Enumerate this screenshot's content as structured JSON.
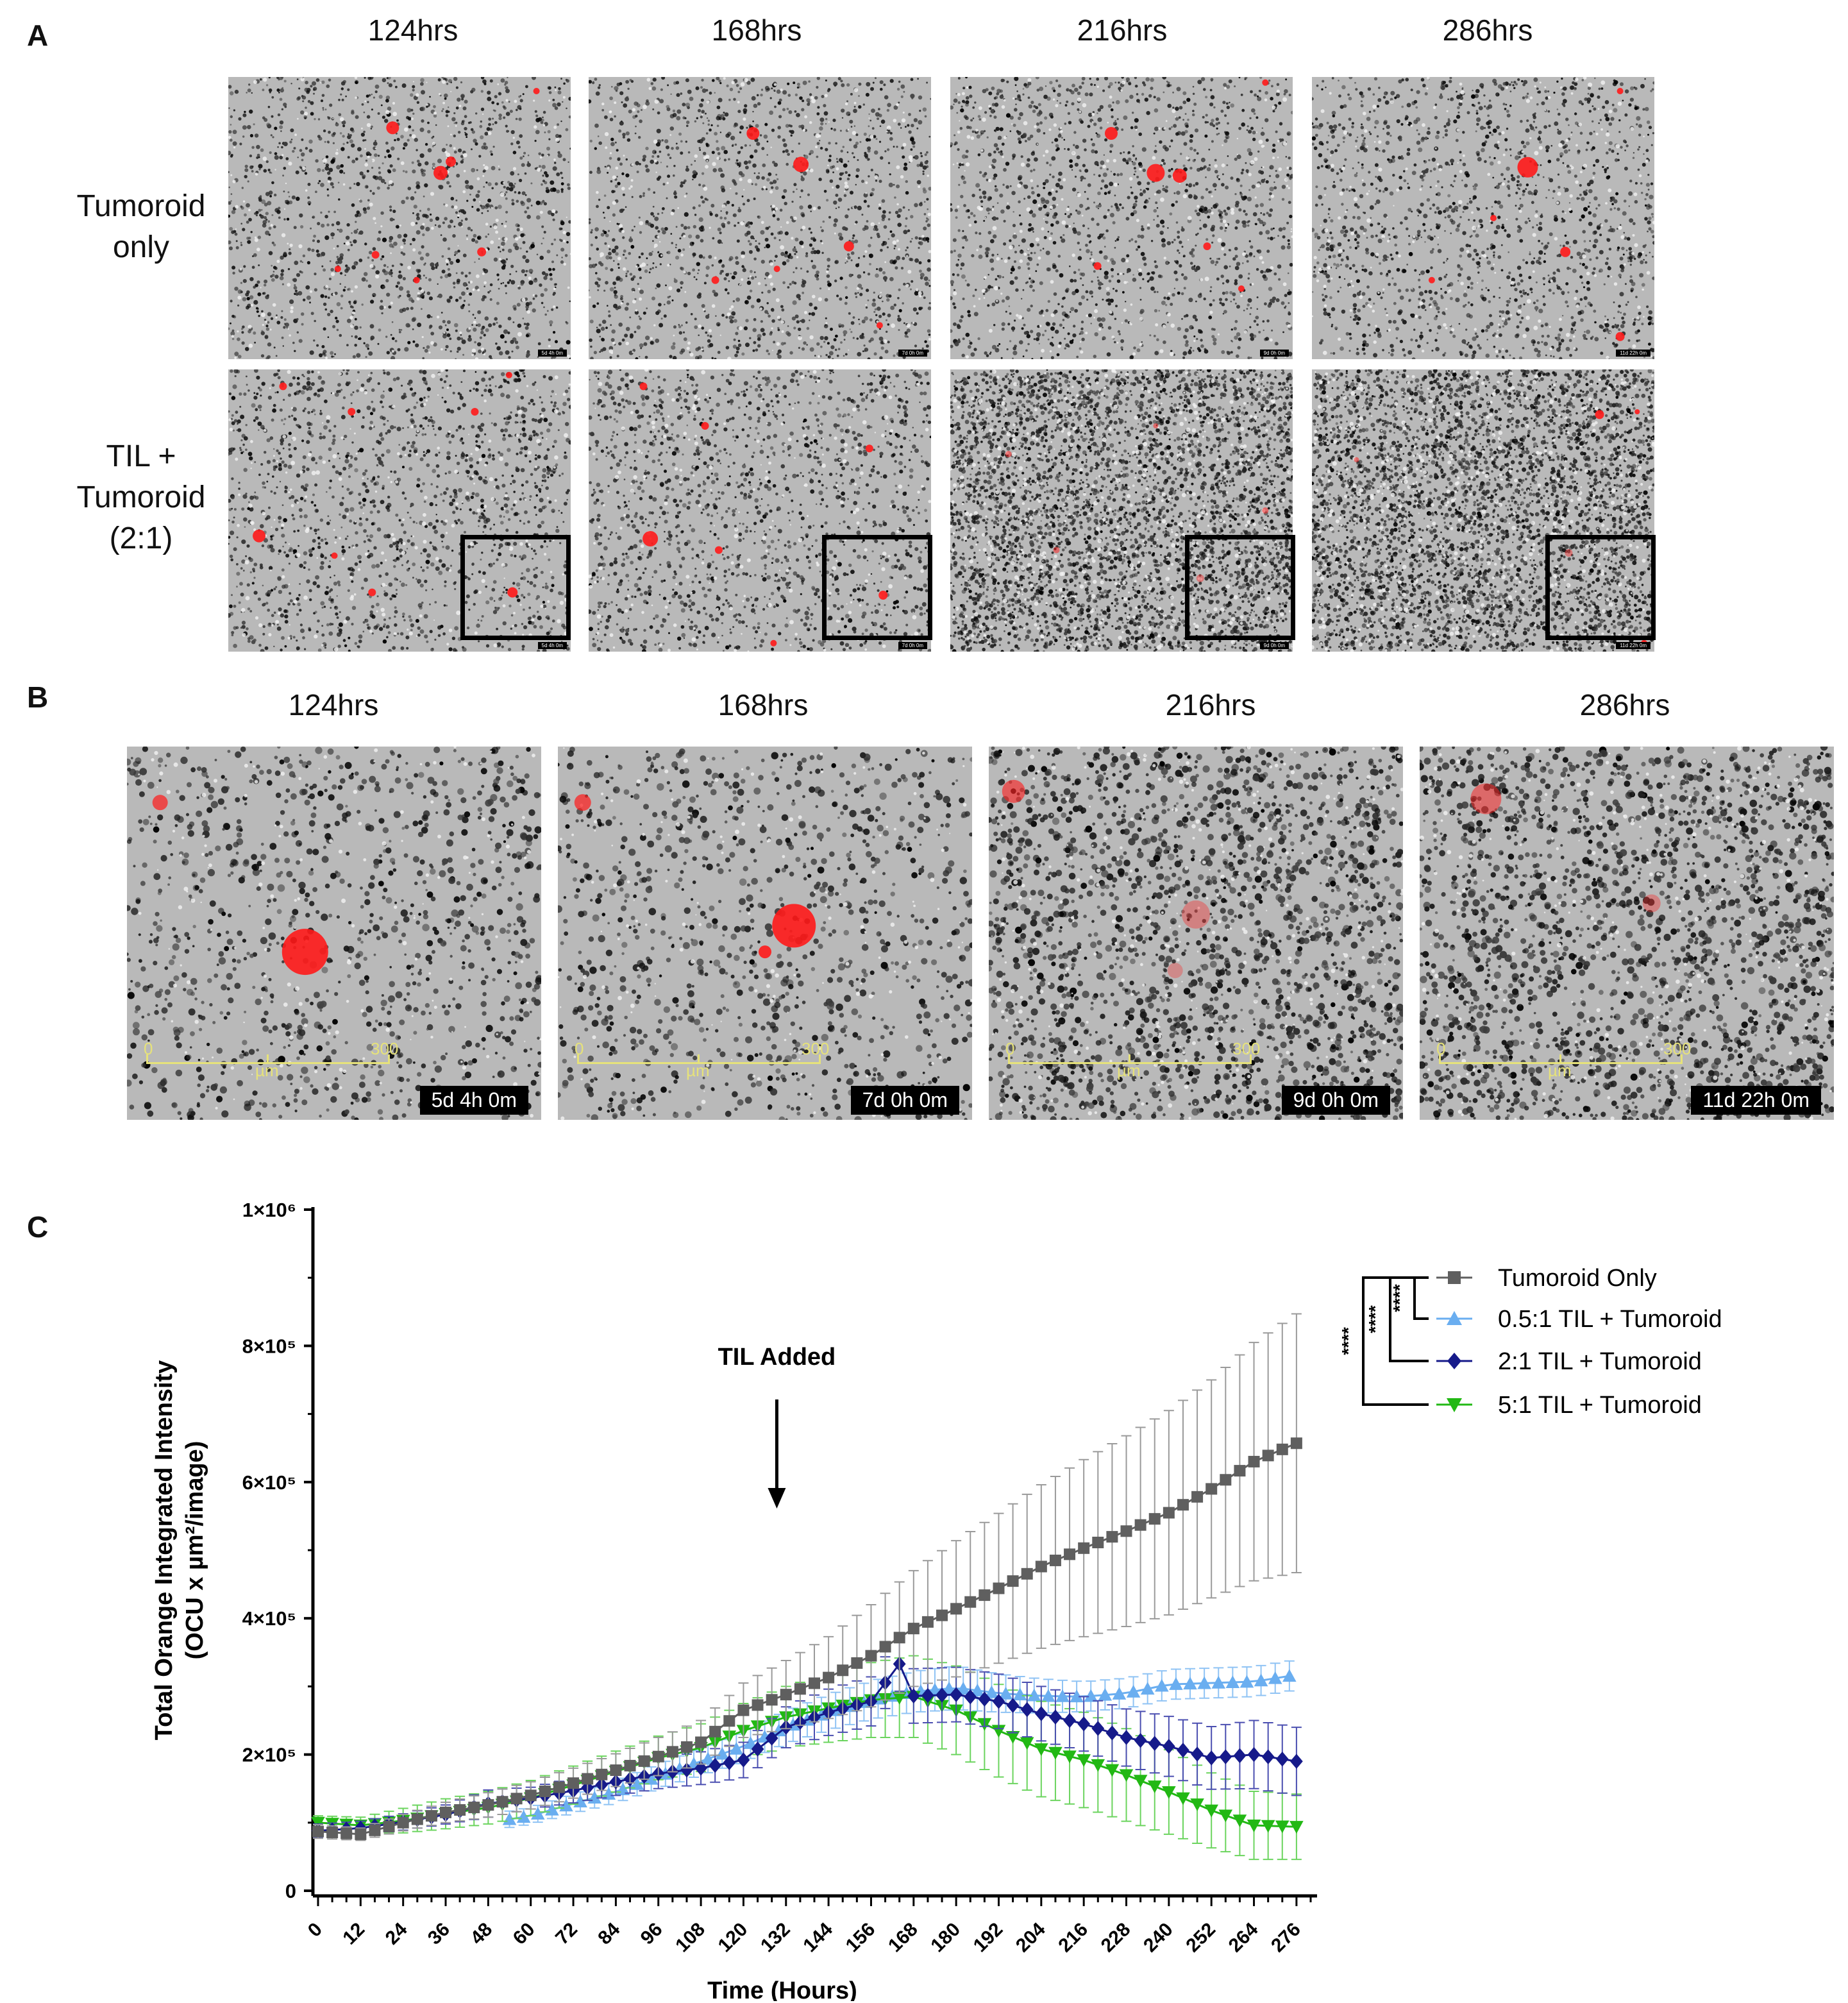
{
  "panels": {
    "a": {
      "label": "A",
      "columns": [
        "124hrs",
        "168hrs",
        "216hrs",
        "286hrs"
      ],
      "rows": [
        {
          "label_lines": [
            "Tumoroid",
            "only"
          ]
        },
        {
          "label_lines": [
            "TIL +",
            "Tumoroid",
            "(2:1)"
          ]
        }
      ],
      "timestamps": [
        "5d 4h 0m",
        "7d 0h 0m",
        "9d 0h 0m",
        "11d 22h 0m"
      ]
    },
    "b": {
      "label": "B",
      "columns": [
        "124hrs",
        "168hrs",
        "216hrs",
        "286hrs"
      ],
      "timestamps": [
        "5d 4h 0m",
        "7d 0h 0m",
        "9d 0h 0m",
        "11d 22h 0m"
      ],
      "scale_labels": {
        "start": "0",
        "unit": "µm",
        "end": "300"
      }
    },
    "c": {
      "label": "C"
    }
  },
  "chart_data": {
    "type": "line",
    "xlabel": "Time (Hours)",
    "ylabel_lines": [
      "Total Orange Integrated Intensity",
      "(OCU x µm²/image)"
    ],
    "ylim": [
      0,
      1000000
    ],
    "xlim": [
      0,
      280
    ],
    "xticks": [
      0,
      12,
      24,
      36,
      48,
      60,
      72,
      84,
      96,
      108,
      120,
      132,
      144,
      156,
      168,
      180,
      192,
      204,
      216,
      228,
      240,
      252,
      264,
      276
    ],
    "yticks": [
      {
        "value": 0,
        "label": "0"
      },
      {
        "value": 200000,
        "label": "2×10⁵"
      },
      {
        "value": 400000,
        "label": "4×10⁵"
      },
      {
        "value": 600000,
        "label": "6×10⁵"
      },
      {
        "value": 800000,
        "label": "8×10⁵"
      },
      {
        "value": 1000000,
        "label": "1×10⁶"
      }
    ],
    "annotation": {
      "text": "TIL Added",
      "x": 120
    },
    "legend_position": "top-right",
    "significance": [
      "****",
      "****",
      "****"
    ],
    "series": [
      {
        "name": "Tumoroid Only",
        "color": "#5f5f5f",
        "error_color": "#9a9a9a",
        "marker": "square",
        "points": [
          [
            0,
            87000
          ],
          [
            12,
            83000
          ],
          [
            24,
            100000
          ],
          [
            36,
            115000
          ],
          [
            48,
            126000
          ],
          [
            60,
            140000
          ],
          [
            72,
            158000
          ],
          [
            84,
            177000
          ],
          [
            96,
            197000
          ],
          [
            108,
            218000
          ],
          [
            120,
            265000
          ],
          [
            132,
            288000
          ],
          [
            144,
            313000
          ],
          [
            156,
            345000
          ],
          [
            168,
            385000
          ],
          [
            180,
            414000
          ],
          [
            192,
            444000
          ],
          [
            204,
            476000
          ],
          [
            216,
            503000
          ],
          [
            228,
            528000
          ],
          [
            240,
            555000
          ],
          [
            252,
            590000
          ],
          [
            264,
            630000
          ],
          [
            276,
            657000
          ]
        ],
        "error": [
          [
            0,
            10000
          ],
          [
            12,
            9000
          ],
          [
            24,
            12000
          ],
          [
            36,
            15000
          ],
          [
            48,
            18000
          ],
          [
            60,
            20000
          ],
          [
            72,
            22000
          ],
          [
            84,
            24000
          ],
          [
            96,
            28000
          ],
          [
            108,
            32000
          ],
          [
            120,
            40000
          ],
          [
            132,
            50000
          ],
          [
            144,
            60000
          ],
          [
            156,
            75000
          ],
          [
            168,
            85000
          ],
          [
            180,
            100000
          ],
          [
            192,
            110000
          ],
          [
            204,
            120000
          ],
          [
            216,
            130000
          ],
          [
            228,
            140000
          ],
          [
            240,
            150000
          ],
          [
            252,
            160000
          ],
          [
            264,
            175000
          ],
          [
            276,
            190000
          ]
        ]
      },
      {
        "name": "0.5:1 TIL + Tumoroid",
        "color": "#6aaef0",
        "error_color": "#8fc3f4",
        "marker": "triangle-up",
        "points": [
          [
            54,
            105000
          ],
          [
            60,
            110000
          ],
          [
            72,
            128000
          ],
          [
            84,
            145000
          ],
          [
            96,
            168000
          ],
          [
            108,
            190000
          ],
          [
            120,
            212000
          ],
          [
            132,
            240000
          ],
          [
            144,
            262000
          ],
          [
            156,
            280000
          ],
          [
            168,
            292000
          ],
          [
            180,
            298000
          ],
          [
            192,
            290000
          ],
          [
            204,
            286000
          ],
          [
            216,
            285000
          ],
          [
            228,
            290000
          ],
          [
            240,
            303000
          ],
          [
            252,
            305000
          ],
          [
            264,
            307000
          ],
          [
            276,
            317000
          ]
        ],
        "error": [
          [
            54,
            12000
          ],
          [
            60,
            12000
          ],
          [
            72,
            14000
          ],
          [
            84,
            16000
          ],
          [
            96,
            18000
          ],
          [
            108,
            20000
          ],
          [
            120,
            22000
          ],
          [
            132,
            24000
          ],
          [
            144,
            26000
          ],
          [
            156,
            28000
          ],
          [
            168,
            30000
          ],
          [
            180,
            32000
          ],
          [
            192,
            28000
          ],
          [
            204,
            25000
          ],
          [
            216,
            22000
          ],
          [
            228,
            22000
          ],
          [
            240,
            22000
          ],
          [
            252,
            22000
          ],
          [
            264,
            22000
          ],
          [
            276,
            22000
          ]
        ]
      },
      {
        "name": "2:1 TIL + Tumoroid",
        "color": "#161a8a",
        "error_color": "#4a4eb0",
        "marker": "diamond",
        "points": [
          [
            0,
            88000
          ],
          [
            12,
            92000
          ],
          [
            24,
            101000
          ],
          [
            36,
            112000
          ],
          [
            48,
            128000
          ],
          [
            60,
            136000
          ],
          [
            72,
            147000
          ],
          [
            84,
            160000
          ],
          [
            96,
            172000
          ],
          [
            108,
            180000
          ],
          [
            120,
            192000
          ],
          [
            132,
            240000
          ],
          [
            144,
            262000
          ],
          [
            156,
            278000
          ],
          [
            164,
            333000
          ],
          [
            168,
            286000
          ],
          [
            180,
            288000
          ],
          [
            192,
            278000
          ],
          [
            204,
            260000
          ],
          [
            216,
            245000
          ],
          [
            228,
            225000
          ],
          [
            240,
            212000
          ],
          [
            252,
            195000
          ],
          [
            264,
            200000
          ],
          [
            276,
            190000
          ]
        ],
        "error": [
          [
            0,
            10000
          ],
          [
            12,
            10000
          ],
          [
            24,
            12000
          ],
          [
            36,
            14000
          ],
          [
            48,
            20000
          ],
          [
            60,
            16000
          ],
          [
            72,
            18000
          ],
          [
            84,
            20000
          ],
          [
            96,
            22000
          ],
          [
            108,
            24000
          ],
          [
            120,
            26000
          ],
          [
            132,
            30000
          ],
          [
            144,
            34000
          ],
          [
            156,
            36000
          ],
          [
            164,
            40000
          ],
          [
            168,
            40000
          ],
          [
            180,
            40000
          ],
          [
            192,
            40000
          ],
          [
            204,
            40000
          ],
          [
            216,
            40000
          ],
          [
            228,
            42000
          ],
          [
            240,
            44000
          ],
          [
            252,
            46000
          ],
          [
            264,
            50000
          ],
          [
            276,
            50000
          ]
        ]
      },
      {
        "name": "5:1 TIL + Tumoroid",
        "color": "#22b814",
        "error_color": "#6bd45e",
        "marker": "triangle-down",
        "points": [
          [
            0,
            100000
          ],
          [
            12,
            96000
          ],
          [
            24,
            103000
          ],
          [
            36,
            113000
          ],
          [
            48,
            122000
          ],
          [
            60,
            136000
          ],
          [
            72,
            155000
          ],
          [
            84,
            175000
          ],
          [
            96,
            195000
          ],
          [
            108,
            210000
          ],
          [
            120,
            235000
          ],
          [
            132,
            255000
          ],
          [
            144,
            268000
          ],
          [
            156,
            280000
          ],
          [
            168,
            285000
          ],
          [
            180,
            265000
          ],
          [
            192,
            235000
          ],
          [
            204,
            208000
          ],
          [
            216,
            192000
          ],
          [
            228,
            170000
          ],
          [
            240,
            145000
          ],
          [
            252,
            118000
          ],
          [
            264,
            96000
          ],
          [
            276,
            94000
          ]
        ],
        "error": [
          [
            0,
            10000
          ],
          [
            12,
            12000
          ],
          [
            24,
            18000
          ],
          [
            36,
            22000
          ],
          [
            48,
            24000
          ],
          [
            60,
            26000
          ],
          [
            72,
            28000
          ],
          [
            84,
            30000
          ],
          [
            96,
            32000
          ],
          [
            108,
            35000
          ],
          [
            120,
            40000
          ],
          [
            132,
            45000
          ],
          [
            144,
            50000
          ],
          [
            156,
            55000
          ],
          [
            168,
            60000
          ],
          [
            180,
            65000
          ],
          [
            192,
            68000
          ],
          [
            204,
            70000
          ],
          [
            216,
            70000
          ],
          [
            228,
            68000
          ],
          [
            240,
            62000
          ],
          [
            252,
            55000
          ],
          [
            264,
            50000
          ],
          [
            276,
            48000
          ]
        ]
      }
    ]
  }
}
